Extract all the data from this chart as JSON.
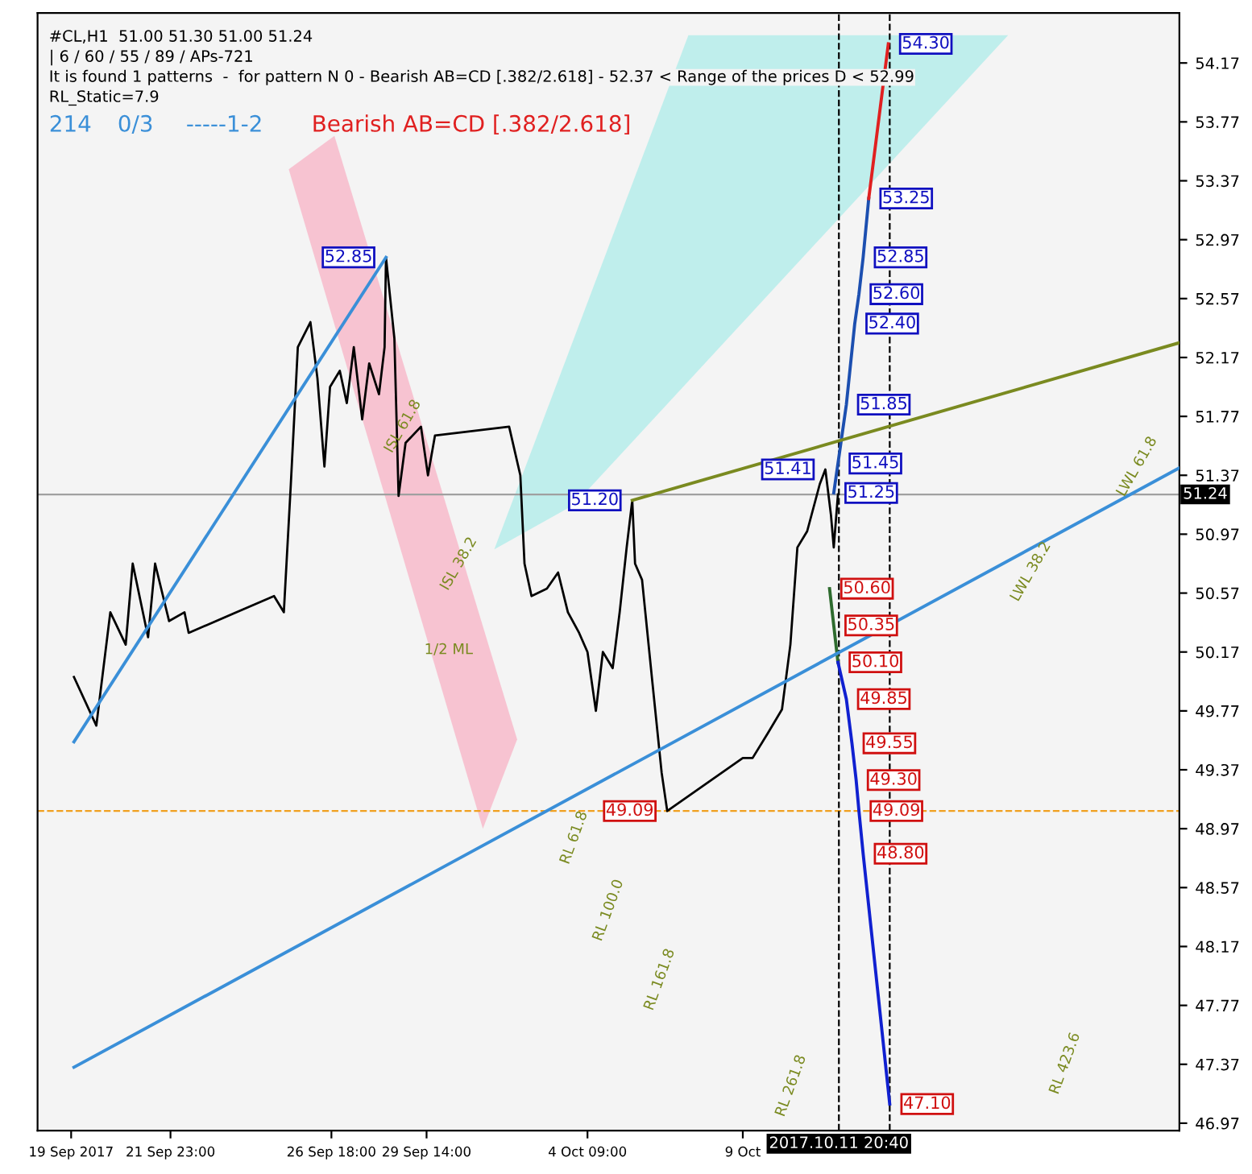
{
  "chart_data": {
    "type": "line",
    "annotations": [
      "#CL,H1  51.00 51.30 51.00 51.24",
      "| 6 / 60 / 55 / 89 / APs-721",
      "It is found 1 patterns  -  for pattern N 0 - Bearish AB=CD [.382/2.618] - 52.37 < Range of the prices D < 52.99",
      "RL_Static=7.9",
      "214",
      "0/3",
      "-----1-2",
      "Bearish AB=CD [.382/2.618]",
      "1/2 ML",
      "ISL 61.8",
      "ISL 38.2",
      "LWL 61.8",
      "LWL 38.2",
      "RL 61.8",
      "RL 100.0",
      "RL 161.8",
      "RL 261.8",
      "RL 423.6",
      {
        "text": "52.85",
        "x": "2017-09-28T09:00",
        "y": 52.85
      },
      {
        "text": "51.20",
        "x": "2017-10-05T17:00",
        "y": 51.2
      },
      {
        "text": "49.09",
        "x": "2017-10-06T18:00",
        "y": 49.09
      },
      {
        "text": "51.41",
        "x": "2017-10-11T11:00",
        "y": 51.41
      },
      {
        "text": "54.30",
        "x": "2017-10-13T08:00",
        "y": 54.3
      },
      {
        "text": "53.25",
        "x": "2017-10-12T18:00",
        "y": 53.25
      },
      {
        "text": "52.85",
        "x": "2017-10-12T14:00",
        "y": 52.85
      },
      {
        "text": "52.60",
        "x": "2017-10-12T11:00",
        "y": 52.6
      },
      {
        "text": "52.40",
        "x": "2017-10-12T08:00",
        "y": 52.4
      },
      {
        "text": "51.85",
        "x": "2017-10-12T02:00",
        "y": 51.85
      },
      {
        "text": "51.45",
        "x": "2017-10-11T20:00",
        "y": 51.45
      },
      {
        "text": "51.25",
        "x": "2017-10-11T17:00",
        "y": 51.25
      },
      {
        "text": "50.60",
        "x": "2017-10-11T14:00",
        "y": 50.6
      },
      {
        "text": "50.35",
        "x": "2017-10-11T17:00",
        "y": 50.35
      },
      {
        "text": "50.10",
        "x": "2017-10-11T20:00",
        "y": 50.1
      },
      {
        "text": "49.85",
        "x": "2017-10-12T02:00",
        "y": 49.85
      },
      {
        "text": "49.55",
        "x": "2017-10-12T06:00",
        "y": 49.55
      },
      {
        "text": "49.30",
        "x": "2017-10-12T09:00",
        "y": 49.3
      },
      {
        "text": "49.09",
        "x": "2017-10-12T11:00",
        "y": 49.09
      },
      {
        "text": "48.80",
        "x": "2017-10-12T14:00",
        "y": 48.8
      },
      {
        "text": "47.10",
        "x": "2017-10-13T09:00",
        "y": 47.1
      }
    ],
    "series": [
      {
        "color": "#000000",
        "x": [
          "2017-09-19T02:00",
          "2017-09-19T18:00",
          "2017-09-20T04:00",
          "2017-09-20T15:00",
          "2017-09-20T20:00",
          "2017-09-21T07:00",
          "2017-09-21T12:00",
          "2017-09-21T22:00",
          "2017-09-22T09:00",
          "2017-09-22T12:00",
          "2017-09-25T01:00",
          "2017-09-25T08:00",
          "2017-09-25T13:00",
          "2017-09-25T18:00",
          "2017-09-26T03:00",
          "2017-09-26T08:00",
          "2017-09-26T13:00",
          "2017-09-26T17:00",
          "2017-09-27T00:00",
          "2017-09-27T05:00",
          "2017-09-27T10:00",
          "2017-09-27T16:00",
          "2017-09-27T21:00",
          "2017-09-28T04:00",
          "2017-09-28T08:00",
          "2017-09-28T09:00",
          "2017-09-28T15:00",
          "2017-09-28T18:00",
          "2017-09-28T23:00",
          "2017-09-29T10:00",
          "2017-09-29T15:00",
          "2017-09-29T20:00",
          "2017-10-02T01:00",
          "2017-10-02T09:00",
          "2017-10-02T12:00",
          "2017-10-02T17:00",
          "2017-10-03T04:00",
          "2017-10-03T12:00",
          "2017-10-03T19:00",
          "2017-10-04T03:00",
          "2017-10-04T09:00",
          "2017-10-04T15:00",
          "2017-10-04T20:00",
          "2017-10-05T03:00",
          "2017-10-05T08:00",
          "2017-10-05T13:00",
          "2017-10-05T17:00",
          "2017-10-05T19:00",
          "2017-10-06T00:00",
          "2017-10-06T07:00",
          "2017-10-06T14:00",
          "2017-10-06T18:00",
          "2017-10-09T00:00",
          "2017-10-09T07:00",
          "2017-10-09T18:00",
          "2017-10-10T04:00",
          "2017-10-10T10:00",
          "2017-10-10T15:00",
          "2017-10-10T22:00",
          "2017-10-11T07:00",
          "2017-10-11T11:00",
          "2017-10-11T15:00",
          "2017-10-11T17:00",
          "2017-10-11T20:00"
        ],
        "values": [
          50.0,
          49.67,
          50.44,
          50.22,
          50.77,
          50.27,
          50.77,
          50.38,
          50.44,
          50.3,
          50.55,
          50.44,
          51.31,
          52.24,
          52.41,
          52.03,
          51.43,
          51.97,
          52.08,
          51.86,
          52.24,
          51.75,
          52.13,
          51.92,
          52.24,
          52.85,
          52.3,
          51.23,
          51.59,
          51.7,
          51.37,
          51.64,
          51.7,
          51.37,
          50.77,
          50.55,
          50.6,
          50.71,
          50.44,
          50.3,
          50.17,
          49.77,
          50.17,
          50.06,
          50.44,
          50.88,
          51.2,
          50.77,
          50.66,
          50.0,
          49.35,
          49.09,
          49.45,
          49.45,
          49.62,
          49.78,
          50.22,
          50.88,
          50.99,
          51.31,
          51.41,
          51.1,
          50.88,
          51.24
        ]
      },
      {
        "color": "#1c4fb0",
        "x": [
          "2017-10-11T17:00",
          "2017-10-12T02:00",
          "2017-10-12T08:00",
          "2017-10-12T11:00",
          "2017-10-12T14:00",
          "2017-10-12T18:00"
        ],
        "values": [
          51.25,
          51.85,
          52.4,
          52.6,
          52.85,
          53.25
        ]
      },
      {
        "color": "#e02020",
        "x": [
          "2017-10-12T18:00",
          "2017-10-13T08:00"
        ],
        "values": [
          53.25,
          54.3
        ]
      },
      {
        "color": "#2e6b2e",
        "x": [
          "2017-10-11T14:00",
          "2017-10-11T20:00"
        ],
        "values": [
          50.6,
          50.1
        ]
      },
      {
        "color": "#1020d0",
        "x": [
          "2017-10-11T20:00",
          "2017-10-12T02:00",
          "2017-10-12T06:00",
          "2017-10-12T09:00",
          "2017-10-12T11:00",
          "2017-10-12T14:00",
          "2017-10-13T09:00"
        ],
        "values": [
          50.1,
          49.85,
          49.55,
          49.3,
          49.09,
          48.8,
          47.1
        ]
      },
      {
        "color": "#3a8fd8",
        "x": [
          "2017-09-19T02:00",
          "2017-09-28T09:00"
        ],
        "values": [
          49.56,
          52.85
        ]
      },
      {
        "color": "#3a8fd8",
        "x": [
          "2017-09-19T02:00",
          "2017-10-22T00:00"
        ],
        "values": [
          47.35,
          51.42
        ]
      },
      {
        "color": "#7a8a20",
        "x": [
          "2017-10-05T17:00",
          "2017-10-22T00:00"
        ],
        "values": [
          51.2,
          52.27
        ]
      }
    ],
    "ref_lines": [
      {
        "axis": "y",
        "value": 51.24,
        "label": "51.24",
        "color": "#a0a0a0",
        "line_style": "solid"
      },
      {
        "axis": "y",
        "value": 49.09,
        "color": "#f0a020",
        "line_style": "dashed"
      },
      {
        "axis": "x",
        "value": "2017-10-11T20:40",
        "label": "2017.10.11 20:40",
        "color": "#000000",
        "line_style": "dashed"
      },
      {
        "axis": "x",
        "value": "2017-10-13T09:00",
        "color": "#000000",
        "line_style": "dashed"
      }
    ],
    "xlim": [
      "2017-09-18T00:00",
      "2017-10-22T00:00"
    ],
    "ylim": [
      46.92,
      54.51
    ],
    "xticks": [
      {
        "value": "2017-09-19T00:00",
        "label": "19 Sep 2017"
      },
      {
        "value": "2017-09-21T23:00",
        "label": "21 Sep 23:00"
      },
      {
        "value": "2017-09-26T18:00",
        "label": "26 Sep 18:00"
      },
      {
        "value": "2017-09-29T14:00",
        "label": "29 Sep 14:00"
      },
      {
        "value": "2017-10-04T09:00",
        "label": "4 Oct 09:00"
      },
      {
        "value": "2017-10-09T00:00",
        "label": "9 Oct"
      }
    ],
    "yticks": [
      54.17,
      53.77,
      53.37,
      52.97,
      52.57,
      52.17,
      51.77,
      51.37,
      50.97,
      50.57,
      50.17,
      49.77,
      49.37,
      48.97,
      48.57,
      48.17,
      47.77,
      47.37,
      46.97
    ],
    "grid": false,
    "marker": "none",
    "line_style": "solid"
  }
}
